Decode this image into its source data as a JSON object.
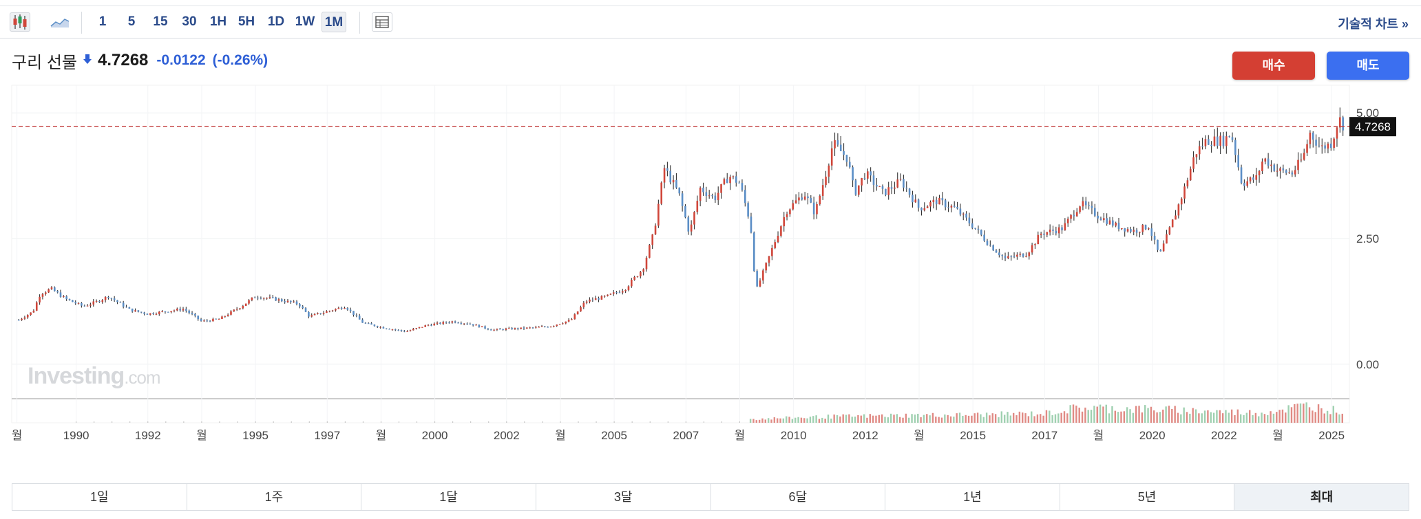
{
  "toolbar": {
    "intervals": [
      "1",
      "5",
      "15",
      "30",
      "1H",
      "5H",
      "1D",
      "1W",
      "1M"
    ],
    "active_interval": "1M",
    "technical_chart_label": "기술적 차트 »"
  },
  "quote": {
    "name": "구리 선물",
    "price": "4.7268",
    "change": "-0.0122",
    "change_pct": "(-0.26%)",
    "direction": "down"
  },
  "actions": {
    "buy_label": "매수",
    "sell_label": "매도"
  },
  "ranges": [
    "1일",
    "1주",
    "1달",
    "3달",
    "6달",
    "1년",
    "5년",
    "최대"
  ],
  "active_range": "최대",
  "watermark": {
    "main": "Investing",
    "suffix": ".com"
  },
  "colors": {
    "up": "#d0463a",
    "down": "#5b8ec6",
    "wick": "#333333",
    "price_line": "#c23b3b",
    "change": "#2e5fd6",
    "buy": "#d43f33",
    "sell": "#3b6ff0"
  },
  "chart_data": {
    "type": "ohlc",
    "interval": "1M",
    "y_ticks": [
      "5.00",
      "2.50",
      "0.00"
    ],
    "ylim": [
      -0.55,
      5.55
    ],
    "current_price": 4.7268,
    "current_price_label": "4.7268",
    "x_tick_labels": [
      {
        "t": 1988.35,
        "label": "월"
      },
      {
        "t": 1990.0,
        "label": "1990"
      },
      {
        "t": 1992.0,
        "label": "1992"
      },
      {
        "t": 1993.5,
        "label": "월"
      },
      {
        "t": 1995.0,
        "label": "1995"
      },
      {
        "t": 1997.0,
        "label": "1997"
      },
      {
        "t": 1998.5,
        "label": "월"
      },
      {
        "t": 2000.0,
        "label": "2000"
      },
      {
        "t": 2002.0,
        "label": "2002"
      },
      {
        "t": 2003.5,
        "label": "월"
      },
      {
        "t": 2005.0,
        "label": "2005"
      },
      {
        "t": 2007.0,
        "label": "2007"
      },
      {
        "t": 2008.5,
        "label": "월"
      },
      {
        "t": 2010.0,
        "label": "2010"
      },
      {
        "t": 2012.0,
        "label": "2012"
      },
      {
        "t": 2013.5,
        "label": "월"
      },
      {
        "t": 2015.0,
        "label": "2015"
      },
      {
        "t": 2017.0,
        "label": "2017"
      },
      {
        "t": 2018.5,
        "label": "월"
      },
      {
        "t": 2020.0,
        "label": "2020"
      },
      {
        "t": 2022.0,
        "label": "2022"
      },
      {
        "t": 2023.5,
        "label": "월"
      },
      {
        "t": 2025.0,
        "label": "2025"
      }
    ],
    "price_path": [
      [
        1988.4,
        0.88
      ],
      [
        1988.8,
        1.05
      ],
      [
        1989.0,
        1.4
      ],
      [
        1989.3,
        1.5
      ],
      [
        1989.7,
        1.3
      ],
      [
        1990.2,
        1.15
      ],
      [
        1990.6,
        1.25
      ],
      [
        1990.9,
        1.35
      ],
      [
        1991.5,
        1.08
      ],
      [
        1992.0,
        1.0
      ],
      [
        1992.5,
        1.05
      ],
      [
        1993.0,
        1.1
      ],
      [
        1993.5,
        0.85
      ],
      [
        1994.0,
        0.9
      ],
      [
        1994.6,
        1.15
      ],
      [
        1995.0,
        1.35
      ],
      [
        1995.5,
        1.3
      ],
      [
        1996.2,
        1.2
      ],
      [
        1996.5,
        0.95
      ],
      [
        1997.0,
        1.05
      ],
      [
        1997.5,
        1.15
      ],
      [
        1998.0,
        0.82
      ],
      [
        1998.6,
        0.72
      ],
      [
        1999.2,
        0.65
      ],
      [
        1999.8,
        0.78
      ],
      [
        2000.5,
        0.85
      ],
      [
        2001.0,
        0.8
      ],
      [
        2001.6,
        0.68
      ],
      [
        2002.0,
        0.7
      ],
      [
        2002.6,
        0.72
      ],
      [
        2003.2,
        0.75
      ],
      [
        2003.8,
        0.88
      ],
      [
        2004.2,
        1.25
      ],
      [
        2004.8,
        1.35
      ],
      [
        2005.3,
        1.5
      ],
      [
        2005.8,
        1.9
      ],
      [
        2006.1,
        2.6
      ],
      [
        2006.4,
        3.9
      ],
      [
        2006.8,
        3.4
      ],
      [
        2007.1,
        2.6
      ],
      [
        2007.4,
        3.5
      ],
      [
        2007.8,
        3.3
      ],
      [
        2008.2,
        3.75
      ],
      [
        2008.5,
        3.6
      ],
      [
        2008.8,
        2.8
      ],
      [
        2008.95,
        1.45
      ],
      [
        2009.3,
        2.1
      ],
      [
        2009.8,
        3.05
      ],
      [
        2010.3,
        3.4
      ],
      [
        2010.6,
        3.0
      ],
      [
        2010.9,
        3.8
      ],
      [
        2011.1,
        4.4
      ],
      [
        2011.5,
        4.1
      ],
      [
        2011.7,
        3.4
      ],
      [
        2012.0,
        3.8
      ],
      [
        2012.5,
        3.4
      ],
      [
        2013.0,
        3.65
      ],
      [
        2013.5,
        3.1
      ],
      [
        2014.0,
        3.25
      ],
      [
        2014.5,
        3.1
      ],
      [
        2015.0,
        2.75
      ],
      [
        2015.5,
        2.35
      ],
      [
        2015.9,
        2.1
      ],
      [
        2016.5,
        2.2
      ],
      [
        2016.9,
        2.6
      ],
      [
        2017.5,
        2.7
      ],
      [
        2018.0,
        3.2
      ],
      [
        2018.5,
        2.95
      ],
      [
        2019.0,
        2.75
      ],
      [
        2019.5,
        2.65
      ],
      [
        2019.9,
        2.75
      ],
      [
        2020.2,
        2.15
      ],
      [
        2020.6,
        2.9
      ],
      [
        2020.9,
        3.5
      ],
      [
        2021.2,
        4.2
      ],
      [
        2021.5,
        4.45
      ],
      [
        2022.0,
        4.45
      ],
      [
        2022.2,
        4.6
      ],
      [
        2022.5,
        3.6
      ],
      [
        2022.9,
        3.7
      ],
      [
        2023.1,
        4.1
      ],
      [
        2023.5,
        3.85
      ],
      [
        2023.9,
        3.8
      ],
      [
        2024.2,
        4.1
      ],
      [
        2024.4,
        4.6
      ],
      [
        2024.7,
        4.3
      ],
      [
        2025.0,
        4.4
      ],
      [
        2025.2,
        4.9
      ],
      [
        2025.35,
        4.7268
      ]
    ],
    "volume": {
      "start_year": 2008.8,
      "levels": [
        [
          2008.8,
          0.15
        ],
        [
          2011.0,
          0.25
        ],
        [
          2013.0,
          0.3
        ],
        [
          2015.0,
          0.32
        ],
        [
          2017.0,
          0.38
        ],
        [
          2018.0,
          0.62
        ],
        [
          2020.0,
          0.55
        ],
        [
          2021.0,
          0.5
        ],
        [
          2023.0,
          0.4
        ],
        [
          2024.3,
          0.7
        ],
        [
          2025.35,
          0.45
        ]
      ]
    }
  }
}
